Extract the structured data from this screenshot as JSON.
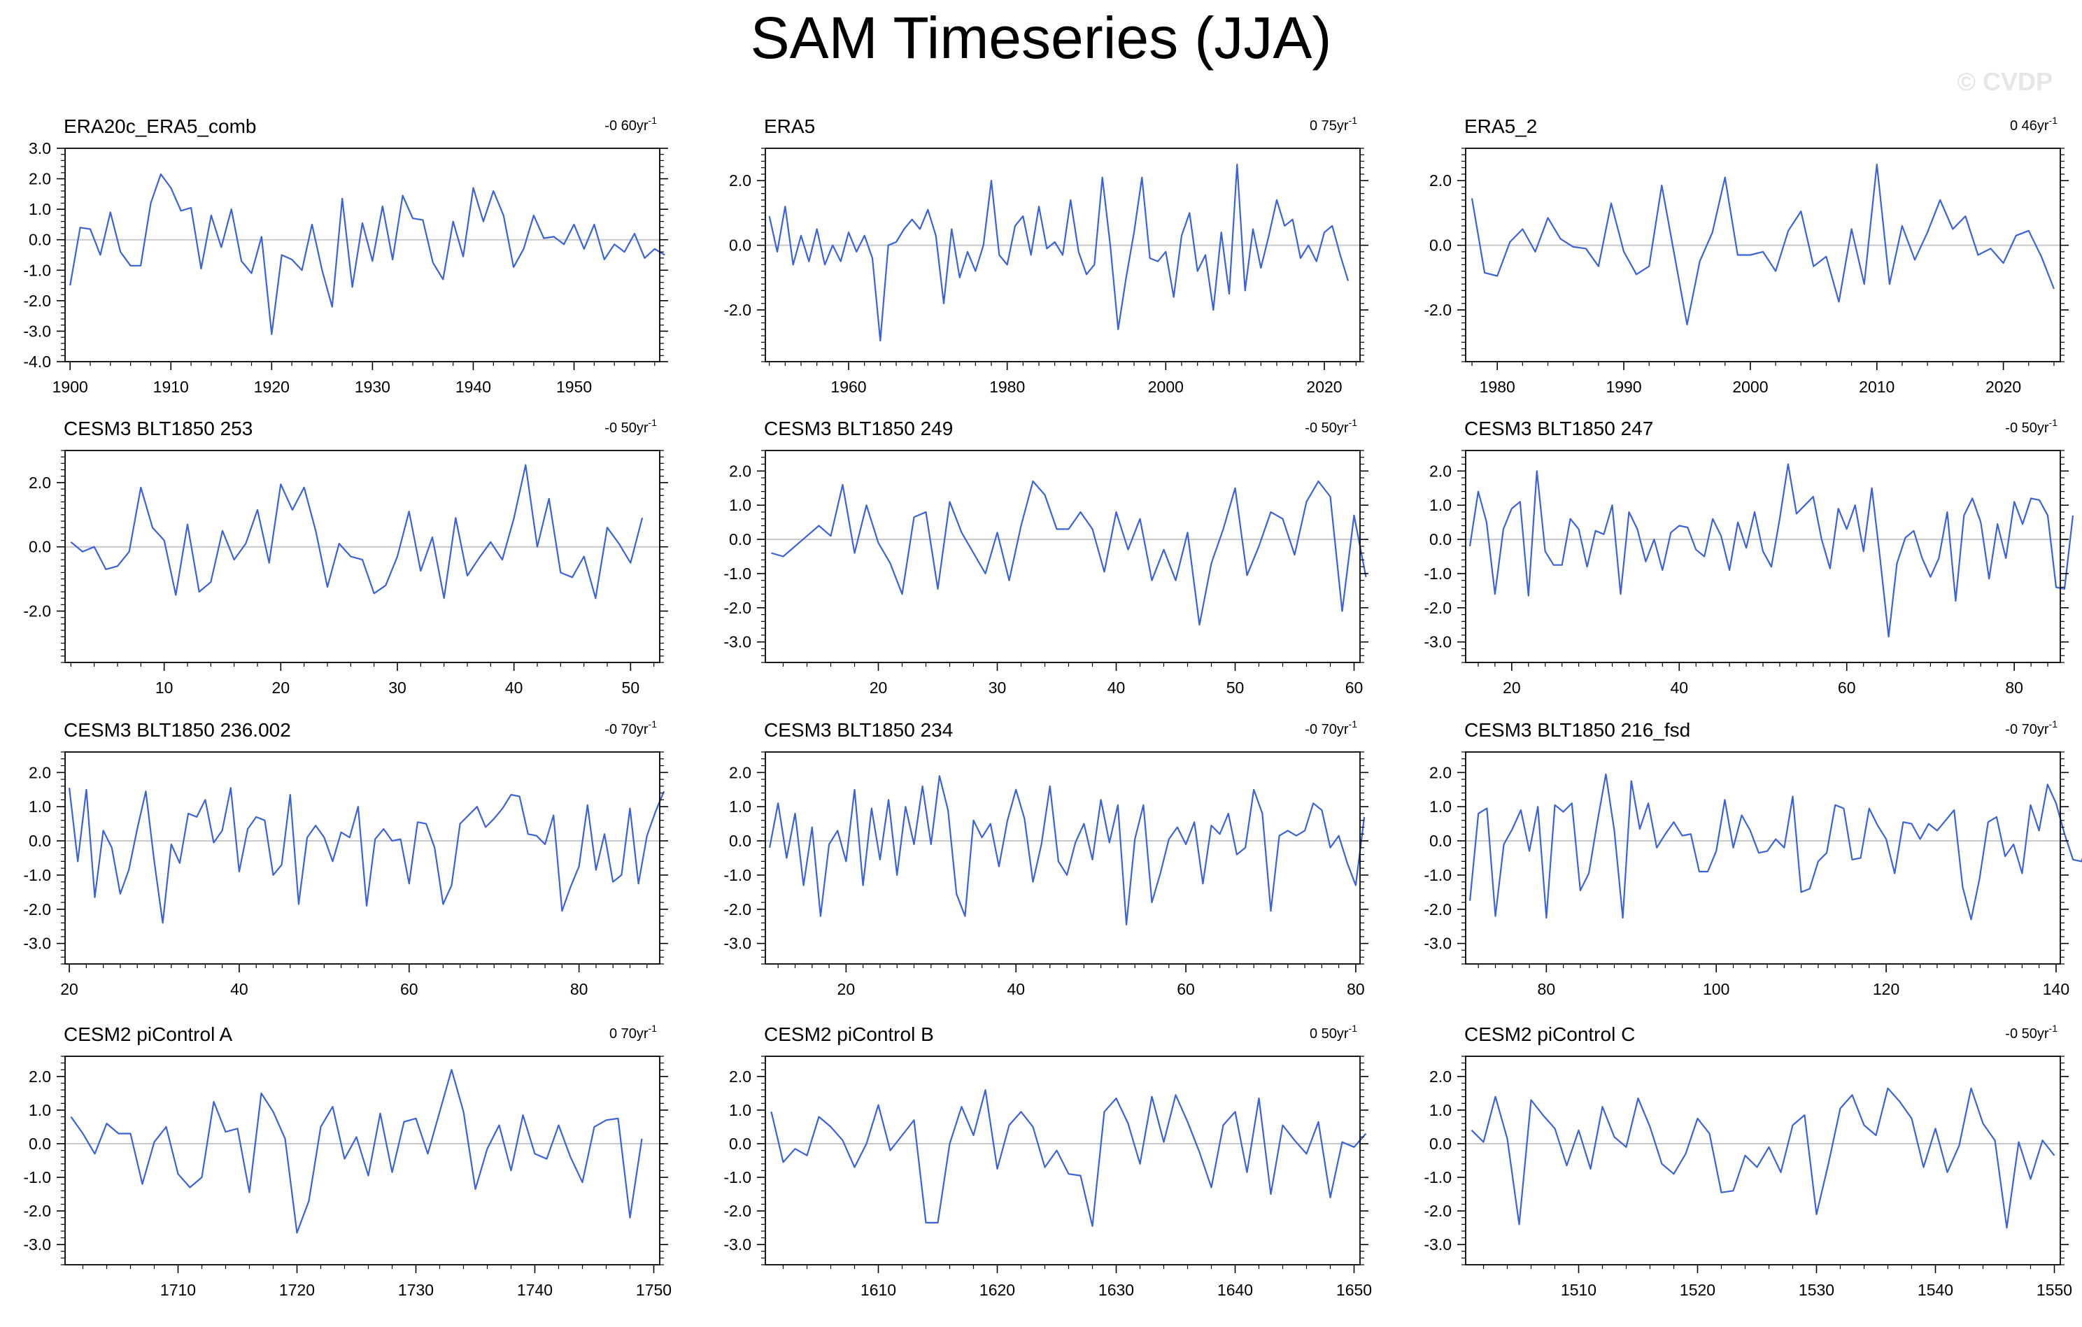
{
  "title": "SAM Timeseries (JJA)",
  "watermark": "© CVDP",
  "line_color": "#3b63d9",
  "zero_line_color": "#c8c8c8",
  "chart_data": [
    {
      "type": "line",
      "title": "ERA20c_ERA5_comb",
      "trend": "-0 60yr",
      "trend_exp": "-1",
      "x_start": 1900,
      "xlim": [
        1899.5,
        1958.5
      ],
      "ylim": [
        -4.0,
        3.0
      ],
      "xticks": [
        1900,
        1910,
        1920,
        1930,
        1940,
        1950
      ],
      "yticks": [
        -4.0,
        -3.0,
        -2.0,
        -1.0,
        0.0,
        1.0,
        2.0,
        3.0
      ],
      "yticklabels": [
        "-4.0",
        "-3.0",
        "-2.0",
        "-1.0",
        "0.0",
        "1.0",
        "2.0",
        "3.0"
      ],
      "values": [
        -1.5,
        0.4,
        0.35,
        -0.5,
        0.9,
        -0.4,
        -0.85,
        -0.85,
        1.2,
        2.15,
        1.7,
        0.95,
        1.05,
        -0.95,
        0.8,
        -0.25,
        1.0,
        -0.7,
        -1.1,
        0.1,
        -3.1,
        -0.5,
        -0.65,
        -1.0,
        0.5,
        -1.0,
        -2.2,
        1.35,
        -1.55,
        0.55,
        -0.7,
        1.1,
        -0.65,
        1.45,
        0.7,
        0.65,
        -0.75,
        -1.3,
        0.6,
        -0.55,
        1.7,
        0.6,
        1.6,
        0.8,
        -0.9,
        -0.3,
        0.8,
        0.05,
        0.1,
        -0.15,
        0.5,
        -0.3,
        0.5,
        -0.65,
        -0.15,
        -0.4,
        0.2,
        -0.6,
        -0.3,
        -0.5
      ]
    },
    {
      "type": "line",
      "title": "ERA5",
      "trend": "0 75yr",
      "trend_exp": "-1",
      "x_start": 1950,
      "xlim": [
        1949.5,
        2024.5
      ],
      "ylim": [
        -3.6,
        3.0
      ],
      "xticks": [
        1960,
        1980,
        2000,
        2020
      ],
      "yticks": [
        -2.0,
        0.0,
        2.0
      ],
      "yticklabels": [
        "-2.0",
        "0.0",
        "2.0"
      ],
      "values": [
        0.9,
        -0.2,
        1.2,
        -0.6,
        0.3,
        -0.5,
        0.5,
        -0.6,
        0.0,
        -0.5,
        0.4,
        -0.2,
        0.3,
        -0.4,
        -2.95,
        0.0,
        0.1,
        0.5,
        0.8,
        0.5,
        1.1,
        0.3,
        -1.8,
        0.5,
        -1.0,
        -0.2,
        -0.8,
        0.0,
        2.0,
        -0.3,
        -0.6,
        0.6,
        0.9,
        -0.3,
        1.2,
        -0.1,
        0.1,
        -0.3,
        1.4,
        -0.2,
        -0.9,
        -0.6,
        2.1,
        0.0,
        -2.6,
        -1.0,
        0.4,
        2.1,
        -0.4,
        -0.5,
        -0.2,
        -1.6,
        0.3,
        1.0,
        -0.8,
        -0.3,
        -2.0,
        0.4,
        -1.5,
        2.5,
        -1.4,
        0.5,
        -0.7,
        0.3,
        1.4,
        0.6,
        0.8,
        -0.4,
        0.0,
        -0.5,
        0.4,
        0.6,
        -0.3,
        -1.1
      ]
    },
    {
      "type": "line",
      "title": "ERA5_2",
      "trend": "0 46yr",
      "trend_exp": "-1",
      "x_start": 1978,
      "xlim": [
        1977.5,
        2024.5
      ],
      "ylim": [
        -3.6,
        3.0
      ],
      "xticks": [
        1980,
        1990,
        2000,
        2010,
        2020
      ],
      "yticks": [
        -2.0,
        0.0,
        2.0
      ],
      "yticklabels": [
        "-2.0",
        "0.0",
        "2.0"
      ],
      "values": [
        1.45,
        -0.85,
        -0.95,
        0.1,
        0.5,
        -0.2,
        0.85,
        0.2,
        -0.05,
        -0.1,
        -0.65,
        1.3,
        -0.2,
        -0.9,
        -0.65,
        1.85,
        -0.3,
        -2.45,
        -0.5,
        0.4,
        2.1,
        -0.3,
        -0.3,
        -0.2,
        -0.8,
        0.45,
        1.05,
        -0.65,
        -0.35,
        -1.75,
        0.5,
        -1.2,
        2.5,
        -1.2,
        0.6,
        -0.45,
        0.4,
        1.4,
        0.5,
        0.9,
        -0.3,
        -0.1,
        -0.55,
        0.3,
        0.45,
        -0.35,
        -1.35
      ]
    },
    {
      "type": "line",
      "title": "CESM3 BLT1850 253",
      "trend": "-0 50yr",
      "trend_exp": "-1",
      "x_start": 2,
      "xlim": [
        1.5,
        52.5
      ],
      "ylim": [
        -3.6,
        3.0
      ],
      "xticks": [
        10,
        20,
        30,
        40,
        50
      ],
      "yticks": [
        -2.0,
        0.0,
        2.0
      ],
      "yticklabels": [
        "-2.0",
        "0.0",
        "2.0"
      ],
      "values": [
        0.15,
        -0.15,
        0.0,
        -0.7,
        -0.6,
        -0.15,
        1.85,
        0.6,
        0.2,
        -1.5,
        0.7,
        -1.4,
        -1.1,
        0.5,
        -0.4,
        0.1,
        1.15,
        -0.5,
        1.95,
        1.15,
        1.85,
        0.5,
        -1.25,
        0.1,
        -0.3,
        -0.4,
        -1.45,
        -1.2,
        -0.3,
        1.1,
        -0.75,
        0.3,
        -1.6,
        0.9,
        -0.9,
        -0.35,
        0.15,
        -0.4,
        0.9,
        2.55,
        0.0,
        1.5,
        -0.8,
        -0.95,
        -0.3,
        -1.6,
        0.6,
        0.1,
        -0.5,
        0.9
      ]
    },
    {
      "type": "line",
      "title": "CESM3 BLT1850 249",
      "trend": "-0 50yr",
      "trend_exp": "-1",
      "x_start": 11,
      "xlim": [
        10.5,
        60.5
      ],
      "ylim": [
        -3.6,
        2.6
      ],
      "xticks": [
        20,
        30,
        40,
        50,
        60
      ],
      "yticks": [
        -3.0,
        -2.0,
        -1.0,
        0.0,
        1.0,
        2.0
      ],
      "yticklabels": [
        "-3.0",
        "-2.0",
        "-1.0",
        "0.0",
        "1.0",
        "2.0"
      ],
      "values": [
        -0.4,
        -0.5,
        -0.2,
        0.1,
        0.4,
        0.1,
        1.6,
        -0.4,
        1.0,
        -0.1,
        -0.7,
        -1.6,
        0.65,
        0.8,
        -1.45,
        1.1,
        0.2,
        -0.4,
        -1.0,
        0.2,
        -1.2,
        0.4,
        1.7,
        1.3,
        0.3,
        0.3,
        0.8,
        0.3,
        -0.95,
        0.8,
        -0.3,
        0.6,
        -1.2,
        -0.3,
        -1.2,
        0.2,
        -2.5,
        -0.7,
        0.3,
        1.5,
        -1.05,
        -0.2,
        0.8,
        0.6,
        -0.45,
        1.1,
        1.7,
        1.25,
        -2.1,
        0.7,
        -1.1
      ]
    },
    {
      "type": "line",
      "title": "CESM3 BLT1850 247",
      "trend": "-0 50yr",
      "trend_exp": "-1",
      "x_start": 15,
      "xlim": [
        14.5,
        85.5
      ],
      "ylim": [
        -3.6,
        2.6
      ],
      "xticks": [
        20,
        40,
        60,
        80
      ],
      "yticks": [
        -3.0,
        -2.0,
        -1.0,
        0.0,
        1.0,
        2.0
      ],
      "yticklabels": [
        "-3.0",
        "-2.0",
        "-1.0",
        "0.0",
        "1.0",
        "2.0"
      ],
      "values": [
        -0.2,
        1.4,
        0.5,
        -1.6,
        0.3,
        0.9,
        1.1,
        -1.65,
        2.0,
        -0.35,
        -0.75,
        -0.75,
        0.6,
        0.3,
        -0.8,
        0.25,
        0.15,
        1.0,
        -1.6,
        0.8,
        0.3,
        -0.65,
        0.0,
        -0.9,
        0.2,
        0.4,
        0.35,
        -0.3,
        -0.5,
        0.6,
        0.1,
        -0.9,
        0.5,
        -0.25,
        0.8,
        -0.35,
        -0.8,
        0.6,
        2.2,
        0.75,
        1.0,
        1.25,
        0.0,
        -0.85,
        0.9,
        0.3,
        1.0,
        -0.35,
        1.5,
        -0.6,
        -2.85,
        -0.7,
        0.05,
        0.25,
        -0.55,
        -1.1,
        -0.55,
        0.8,
        -1.8,
        0.7,
        1.2,
        0.5,
        -1.15,
        0.45,
        -0.55,
        1.1,
        0.45,
        1.2,
        1.15,
        0.7,
        -1.4,
        -1.45,
        0.7
      ]
    },
    {
      "type": "line",
      "title": "CESM3 BLT1850 236.002",
      "trend": "-0 70yr",
      "trend_exp": "-1",
      "x_start": 20,
      "xlim": [
        19.5,
        89.5
      ],
      "ylim": [
        -3.6,
        2.6
      ],
      "xticks": [
        20,
        40,
        60,
        80
      ],
      "yticks": [
        -3.0,
        -2.0,
        -1.0,
        0.0,
        1.0,
        2.0
      ],
      "yticklabels": [
        "-3.0",
        "-2.0",
        "-1.0",
        "0.0",
        "1.0",
        "2.0"
      ],
      "values": [
        1.55,
        -0.6,
        1.5,
        -1.65,
        0.3,
        -0.2,
        -1.55,
        -0.85,
        0.35,
        1.45,
        -0.6,
        -2.4,
        -0.1,
        -0.65,
        0.8,
        0.7,
        1.2,
        -0.05,
        0.3,
        1.55,
        -0.9,
        0.35,
        0.7,
        0.6,
        -1.0,
        -0.7,
        1.35,
        -1.85,
        0.1,
        0.45,
        0.1,
        -0.6,
        0.25,
        0.1,
        1.0,
        -1.9,
        0.05,
        0.35,
        0.0,
        0.05,
        -1.25,
        0.55,
        0.5,
        -0.2,
        -1.85,
        -1.3,
        0.5,
        0.75,
        1.0,
        0.4,
        0.65,
        0.95,
        1.35,
        1.3,
        0.2,
        0.15,
        -0.1,
        0.75,
        -2.05,
        -1.35,
        -0.75,
        1.05,
        -0.85,
        0.2,
        -1.2,
        -1.0,
        0.95,
        -1.25,
        0.15,
        0.85,
        1.45
      ]
    },
    {
      "type": "line",
      "title": "CESM3 BLT1850 234",
      "trend": "-0 70yr",
      "trend_exp": "-1",
      "x_start": 11,
      "xlim": [
        10.5,
        80.5
      ],
      "ylim": [
        -3.6,
        2.6
      ],
      "xticks": [
        20,
        40,
        60,
        80
      ],
      "yticks": [
        -3.0,
        -2.0,
        -1.0,
        0.0,
        1.0,
        2.0
      ],
      "yticklabels": [
        "-3.0",
        "-2.0",
        "-1.0",
        "0.0",
        "1.0",
        "2.0"
      ],
      "values": [
        -0.2,
        1.1,
        -0.5,
        0.8,
        -1.3,
        0.4,
        -2.2,
        -0.1,
        0.3,
        -0.6,
        1.5,
        -1.3,
        0.95,
        -0.55,
        1.2,
        -1.0,
        1.0,
        -0.1,
        1.6,
        -0.1,
        1.9,
        0.9,
        -1.55,
        -2.2,
        0.6,
        0.1,
        0.5,
        -0.75,
        0.6,
        1.5,
        0.65,
        -1.2,
        -0.1,
        1.6,
        -0.6,
        -1.0,
        -0.05,
        0.5,
        -0.55,
        1.2,
        -0.05,
        1.05,
        -2.45,
        0.05,
        1.05,
        -1.8,
        -0.95,
        0.05,
        0.4,
        -0.1,
        0.55,
        -1.25,
        0.45,
        0.2,
        0.8,
        -0.4,
        -0.2,
        1.5,
        0.8,
        -2.05,
        0.15,
        0.3,
        0.15,
        0.3,
        1.1,
        0.9,
        -0.2,
        0.15,
        -0.65,
        -1.3,
        0.7
      ]
    },
    {
      "type": "line",
      "title": "CESM3 BLT1850 216_fsd",
      "trend": "-0 70yr",
      "trend_exp": "-1",
      "x_start": 71,
      "xlim": [
        70.5,
        140.5
      ],
      "ylim": [
        -3.6,
        2.6
      ],
      "xticks": [
        80,
        100,
        120,
        140
      ],
      "yticks": [
        -3.0,
        -2.0,
        -1.0,
        0.0,
        1.0,
        2.0
      ],
      "yticklabels": [
        "-3.0",
        "-2.0",
        "-1.0",
        "0.0",
        "1.0",
        "2.0"
      ],
      "values": [
        -1.75,
        0.8,
        0.95,
        -2.2,
        -0.1,
        0.35,
        0.9,
        -0.3,
        1.0,
        -2.25,
        1.05,
        0.85,
        1.1,
        -1.45,
        -0.95,
        0.55,
        1.95,
        0.3,
        -2.25,
        1.75,
        0.35,
        1.1,
        -0.2,
        0.2,
        0.55,
        0.15,
        0.2,
        -0.9,
        -0.9,
        -0.3,
        1.2,
        -0.2,
        0.75,
        0.3,
        -0.35,
        -0.3,
        0.05,
        -0.2,
        1.3,
        -1.5,
        -1.4,
        -0.6,
        -0.35,
        1.05,
        0.95,
        -0.55,
        -0.5,
        0.95,
        0.45,
        0.05,
        -0.95,
        0.55,
        0.5,
        0.05,
        0.5,
        0.3,
        0.6,
        0.9,
        -1.35,
        -2.3,
        -1.1,
        0.55,
        0.7,
        -0.45,
        -0.1,
        -0.95,
        1.05,
        0.3,
        1.65,
        1.1,
        0.2,
        -0.55,
        -0.6,
        0.2
      ]
    },
    {
      "type": "line",
      "title": "CESM2 piControl A",
      "trend": "0 70yr",
      "trend_exp": "-1",
      "x_start": 1701,
      "xlim": [
        1700.5,
        1750.5
      ],
      "ylim": [
        -3.6,
        2.6
      ],
      "xticks": [
        1710,
        1720,
        1730,
        1740,
        1750
      ],
      "yticks": [
        -3.0,
        -2.0,
        -1.0,
        0.0,
        1.0,
        2.0
      ],
      "yticklabels": [
        "-3.0",
        "-2.0",
        "-1.0",
        "0.0",
        "1.0",
        "2.0"
      ],
      "values": [
        0.8,
        0.3,
        -0.3,
        0.6,
        0.3,
        0.3,
        -1.2,
        0.05,
        0.5,
        -0.9,
        -1.3,
        -1.0,
        1.25,
        0.35,
        0.45,
        -1.45,
        1.5,
        0.95,
        0.15,
        -2.65,
        -1.7,
        0.5,
        1.1,
        -0.45,
        0.2,
        -0.95,
        0.9,
        -0.85,
        0.65,
        0.75,
        -0.3,
        0.95,
        2.2,
        0.95,
        -1.35,
        -0.15,
        0.55,
        -0.8,
        0.85,
        -0.3,
        -0.45,
        0.55,
        -0.4,
        -1.15,
        0.5,
        0.7,
        0.75,
        -2.2,
        0.15
      ]
    },
    {
      "type": "line",
      "title": "CESM2 piControl B",
      "trend": "0 50yr",
      "trend_exp": "-1",
      "x_start": 1601,
      "xlim": [
        1600.5,
        1650.5
      ],
      "ylim": [
        -3.6,
        2.6
      ],
      "xticks": [
        1610,
        1620,
        1630,
        1640,
        1650
      ],
      "yticks": [
        -3.0,
        -2.0,
        -1.0,
        0.0,
        1.0,
        2.0
      ],
      "yticklabels": [
        "-3.0",
        "-2.0",
        "-1.0",
        "0.0",
        "1.0",
        "2.0"
      ],
      "values": [
        0.95,
        -0.55,
        -0.15,
        -0.35,
        0.8,
        0.5,
        0.1,
        -0.7,
        0.0,
        1.15,
        -0.2,
        0.25,
        0.7,
        -2.35,
        -2.35,
        0.0,
        1.1,
        0.25,
        1.6,
        -0.75,
        0.55,
        0.95,
        0.5,
        -0.7,
        -0.2,
        -0.9,
        -0.95,
        -2.45,
        0.95,
        1.35,
        0.6,
        -0.6,
        1.4,
        0.05,
        1.45,
        0.65,
        -0.25,
        -1.3,
        0.55,
        0.95,
        -0.85,
        1.35,
        -1.5,
        0.55,
        0.1,
        -0.3,
        0.65,
        -1.6,
        0.05,
        -0.1,
        0.3
      ]
    },
    {
      "type": "line",
      "title": "CESM2 piControl C",
      "trend": "-0 50yr",
      "trend_exp": "-1",
      "x_start": 1501,
      "xlim": [
        1500.5,
        1550.5
      ],
      "ylim": [
        -3.6,
        2.6
      ],
      "xticks": [
        1510,
        1520,
        1530,
        1540,
        1550
      ],
      "yticks": [
        -3.0,
        -2.0,
        -1.0,
        0.0,
        1.0,
        2.0
      ],
      "yticklabels": [
        "-3.0",
        "-2.0",
        "-1.0",
        "0.0",
        "1.0",
        "2.0"
      ],
      "values": [
        0.4,
        0.05,
        1.4,
        0.15,
        -2.4,
        1.3,
        0.85,
        0.45,
        -0.65,
        0.4,
        -0.75,
        1.1,
        0.2,
        -0.1,
        1.35,
        0.5,
        -0.6,
        -0.9,
        -0.3,
        0.75,
        0.3,
        -1.45,
        -1.4,
        -0.35,
        -0.7,
        -0.1,
        -0.85,
        0.55,
        0.85,
        -2.1,
        -0.6,
        1.05,
        1.45,
        0.55,
        0.25,
        1.65,
        1.25,
        0.75,
        -0.7,
        0.45,
        -0.85,
        -0.05,
        1.65,
        0.6,
        0.1,
        -2.5,
        0.05,
        -1.05,
        0.1,
        -0.35
      ]
    }
  ]
}
